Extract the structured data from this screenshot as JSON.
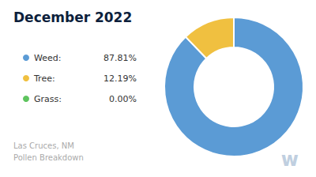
{
  "chart_data": {
    "type": "pie",
    "title": "December 2022",
    "subtitle": "Las Cruces, NM\nPollen Breakdown",
    "categories": [
      "Weed:",
      "Tree:",
      "Grass:"
    ],
    "values": [
      87.81,
      12.19,
      0.001
    ],
    "value_labels": [
      "87.81%",
      "12.19%",
      "0.00%"
    ],
    "colors": [
      "#5b9bd5",
      "#f0c040",
      "#5ec45e"
    ],
    "legend": "left",
    "annotations": [
      {
        "text": "w",
        "color": "#c0cfe0"
      }
    ]
  }
}
